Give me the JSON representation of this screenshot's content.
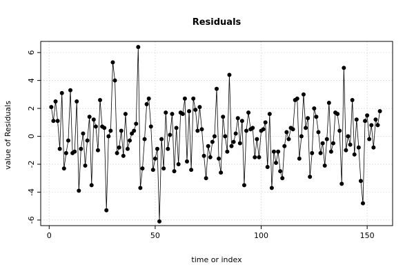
{
  "chart_data": {
    "type": "line",
    "title": "Residuals",
    "xlabel": "time or index",
    "ylabel": "value of Residuals",
    "xlim": [
      -4,
      162
    ],
    "ylim": [
      -6.4,
      6.8
    ],
    "xticks": [
      0,
      50,
      100,
      150
    ],
    "yticks": [
      -6,
      -4,
      -2,
      0,
      2,
      4,
      6
    ],
    "grid": true,
    "colors": {
      "line": "#000000",
      "point": "#000000",
      "grid": "#d9d9d9"
    },
    "series": [
      {
        "markers": "filled-circle",
        "x": [
          1,
          2,
          3,
          4,
          5,
          6,
          7,
          8,
          9,
          10,
          11,
          12,
          13,
          14,
          15,
          16,
          17,
          18,
          19,
          20,
          21,
          22,
          23,
          24,
          25,
          26,
          27,
          28,
          29,
          30,
          31,
          32,
          33,
          34,
          35,
          36,
          37,
          38,
          39,
          40,
          41,
          42,
          43,
          44,
          45,
          46,
          47,
          48,
          49,
          50,
          51,
          52,
          53,
          54,
          55,
          56,
          57,
          58,
          59,
          60,
          61,
          62,
          63,
          64,
          65,
          66,
          67,
          68,
          69,
          70,
          71,
          72,
          73,
          74,
          75,
          76,
          77,
          78,
          79,
          80,
          81,
          82,
          83,
          84,
          85,
          86,
          87,
          88,
          89,
          90,
          91,
          92,
          93,
          94,
          95,
          96,
          97,
          98,
          99,
          100,
          101,
          102,
          103,
          104,
          105,
          106,
          107,
          108,
          109,
          110,
          111,
          112,
          113,
          114,
          115,
          116,
          117,
          118,
          119,
          120,
          121,
          122,
          123,
          124,
          125,
          126,
          127,
          128,
          129,
          130,
          131,
          132,
          133,
          134,
          135,
          136,
          137,
          138,
          139,
          140,
          141,
          142,
          143,
          144,
          145,
          146,
          147,
          148,
          149,
          150,
          151,
          152,
          153,
          154,
          155,
          156
        ],
        "values": [
          2.1,
          1.1,
          2.5,
          1.1,
          -0.9,
          3.1,
          -2.3,
          -1.2,
          -0.3,
          3.3,
          -1.2,
          -1.1,
          2.5,
          -3.9,
          -0.9,
          0.2,
          -2.1,
          -0.3,
          1.4,
          -3.5,
          1.2,
          0.7,
          -1.0,
          2.6,
          0.7,
          0.6,
          -5.3,
          0.0,
          0.4,
          5.3,
          4.0,
          -1.2,
          -0.8,
          0.4,
          -1.4,
          1.6,
          -0.9,
          -0.3,
          0.2,
          0.4,
          0.9,
          6.4,
          -3.7,
          -2.3,
          -0.2,
          2.3,
          2.7,
          0.7,
          -2.4,
          -1.6,
          -0.9,
          -6.1,
          -0.2,
          -2.3,
          1.7,
          -0.9,
          0.1,
          1.6,
          -2.5,
          0.6,
          -2.0,
          1.7,
          1.6,
          2.7,
          -1.8,
          1.8,
          -2.4,
          2.7,
          1.9,
          0.4,
          2.1,
          0.5,
          -1.4,
          -3.0,
          -0.7,
          -1.5,
          -0.4,
          0.0,
          3.4,
          -1.6,
          -2.6,
          1.4,
          0.0,
          -1.1,
          4.4,
          -0.7,
          -0.4,
          0.2,
          1.3,
          -0.5,
          1.1,
          -3.5,
          0.4,
          1.7,
          0.5,
          0.6,
          -1.5,
          -0.2,
          -1.5,
          0.4,
          0.5,
          1.0,
          -2.2,
          1.6,
          -3.7,
          -1.1,
          -1.9,
          -1.1,
          -2.5,
          -3.0,
          -0.7,
          0.3,
          -0.2,
          0.6,
          0.5,
          2.6,
          2.7,
          -1.6,
          0.0,
          3.0,
          0.6,
          1.3,
          -2.9,
          -1.2,
          2.0,
          1.4,
          0.3,
          -1.2,
          -0.5,
          -2.1,
          -0.2,
          2.4,
          -1.1,
          -0.5,
          1.7,
          1.6,
          0.4,
          -3.4,
          4.9,
          -1.0,
          0.0,
          -0.6,
          2.6,
          -1.3,
          1.2,
          -0.8,
          -3.2,
          -4.8,
          1.1,
          1.5,
          -0.2,
          0.8,
          -0.8,
          1.2,
          0.8,
          1.8
        ]
      }
    ]
  }
}
